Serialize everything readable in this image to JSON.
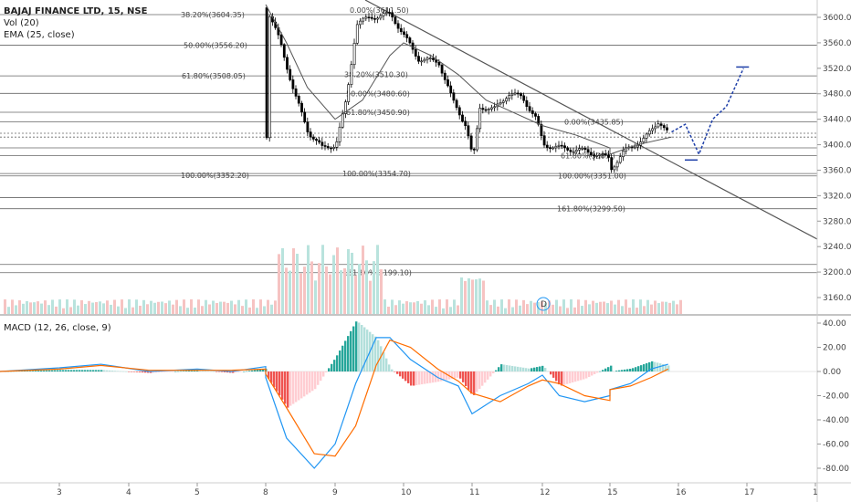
{
  "legend": {
    "symbol": "BAJAJ FINANCE LTD, 15, NSE",
    "vol": "Vol (20)",
    "ema": "EMA (25, close)",
    "macd": "MACD (12, 26, close, 9)"
  },
  "colors": {
    "up": "#26a69a",
    "down": "#ef5350",
    "candle": "#000000",
    "ema": "#555555",
    "trend": "#555555",
    "fib": "#666666",
    "macd_line": "#2196f3",
    "signal_line": "#ff6d00",
    "projection": "#1e3fa8"
  },
  "chart_data": [
    {
      "type": "candlestick",
      "price_axis": {
        "ticks": [
          "3600.00",
          "3560.00",
          "3520.00",
          "3480.00",
          "3440.00",
          "3400.00",
          "3360.00",
          "3320.00",
          "3280.00",
          "3240.00",
          "3200.00",
          "3160.00"
        ],
        "ylim": [
          3138,
          3620
        ]
      },
      "time_axis": {
        "ticks": [
          "3",
          "4",
          "5",
          "8",
          "9",
          "10",
          "11",
          "12",
          "15",
          "16",
          "17",
          "1"
        ]
      },
      "fib_labels": [
        {
          "text": "38.20%(3604.35)",
          "value": 3604.35
        },
        {
          "text": "50.00%(3556.20)",
          "value": 3556.2
        },
        {
          "text": "61.80%(3508.05)",
          "value": 3508.05
        },
        {
          "text": "100.00%(3352.20)",
          "value": 3352.2
        },
        {
          "text": "0.00%(3611.50)",
          "value": 3611.5
        },
        {
          "text": "38.20%(3510.30)",
          "value": 3510.3
        },
        {
          "text": "50.00%(3480.60)",
          "value": 3480.6
        },
        {
          "text": "61.80%(3450.90)",
          "value": 3450.9
        },
        {
          "text": "100.00%(3354.70)",
          "value": 3354.7
        },
        {
          "text": "161.80%(3199.10)",
          "value": 3199.1
        },
        {
          "text": "0.00%(3435.85)",
          "value": 3435.85
        },
        {
          "text": "61.80%(3383.)",
          "value": 3383
        },
        {
          "text": "100.00%(3351.00)",
          "value": 3351
        },
        {
          "text": "161.80%(3299.50)",
          "value": 3299.5
        }
      ],
      "horizontal_levels": [
        3604.35,
        3556.2,
        3508.05,
        3480.6,
        3450.9,
        3435.85,
        3418,
        3412,
        3395,
        3383,
        3354.7,
        3351,
        3317,
        3299.5,
        3212,
        3199.1
      ],
      "trendline": {
        "from": {
          "time": "10",
          "price": 3620
        },
        "to": {
          "time": "1",
          "price": 3250
        }
      },
      "ema_25": [
        {
          "t": 8.0,
          "p": 3620
        },
        {
          "t": 8.3,
          "p": 3560
        },
        {
          "t": 8.6,
          "p": 3490
        },
        {
          "t": 9.0,
          "p": 3440
        },
        {
          "t": 9.4,
          "p": 3470
        },
        {
          "t": 9.8,
          "p": 3540
        },
        {
          "t": 10.0,
          "p": 3560
        },
        {
          "t": 10.4,
          "p": 3540
        },
        {
          "t": 10.8,
          "p": 3510
        },
        {
          "t": 11.2,
          "p": 3470
        },
        {
          "t": 11.6,
          "p": 3450
        },
        {
          "t": 12.0,
          "p": 3430
        },
        {
          "t": 12.4,
          "p": 3415
        },
        {
          "t": 12.8,
          "p": 3395
        },
        {
          "t": 15.0,
          "p": 3385
        },
        {
          "t": 15.4,
          "p": 3400
        },
        {
          "t": 15.9,
          "p": 3412
        }
      ],
      "price_path": [
        {
          "t": 8.0,
          "p": 3615
        },
        {
          "t": 8.2,
          "p": 3560
        },
        {
          "t": 8.4,
          "p": 3480
        },
        {
          "t": 8.6,
          "p": 3420
        },
        {
          "t": 8.8,
          "p": 3395
        },
        {
          "t": 9.0,
          "p": 3400
        },
        {
          "t": 9.15,
          "p": 3470
        },
        {
          "t": 9.3,
          "p": 3590
        },
        {
          "t": 9.5,
          "p": 3600
        },
        {
          "t": 9.8,
          "p": 3605
        },
        {
          "t": 10.0,
          "p": 3570
        },
        {
          "t": 10.2,
          "p": 3535
        },
        {
          "t": 10.5,
          "p": 3530
        },
        {
          "t": 10.7,
          "p": 3470
        },
        {
          "t": 10.9,
          "p": 3430
        },
        {
          "t": 11.0,
          "p": 3375
        },
        {
          "t": 11.1,
          "p": 3460
        },
        {
          "t": 11.3,
          "p": 3455
        },
        {
          "t": 11.5,
          "p": 3480
        },
        {
          "t": 11.7,
          "p": 3475
        },
        {
          "t": 11.9,
          "p": 3440
        },
        {
          "t": 12.0,
          "p": 3400
        },
        {
          "t": 12.2,
          "p": 3395
        },
        {
          "t": 12.5,
          "p": 3390
        },
        {
          "t": 12.8,
          "p": 3378
        },
        {
          "t": 15.0,
          "p": 3362
        },
        {
          "t": 15.2,
          "p": 3390
        },
        {
          "t": 15.5,
          "p": 3410
        },
        {
          "t": 15.7,
          "p": 3438
        },
        {
          "t": 15.85,
          "p": 3415
        }
      ],
      "projection": [
        {
          "t": 15.9,
          "p": 3420
        },
        {
          "t": 16.1,
          "p": 3432
        },
        {
          "t": 16.3,
          "p": 3385
        },
        {
          "t": 16.5,
          "p": 3440
        },
        {
          "t": 16.7,
          "p": 3460
        },
        {
          "t": 16.95,
          "p": 3520
        }
      ],
      "projection_marks": [
        {
          "t": 16.2,
          "price": 3376
        },
        {
          "t": 16.95,
          "price": 3522
        }
      ],
      "volume_label": "D"
    },
    {
      "type": "line",
      "title": "MACD (12, 26, close, 9)",
      "ylim": [
        -85,
        42
      ],
      "ticks": [
        "40.00",
        "20.00",
        "0.00",
        "-20.00",
        "-40.00",
        "-60.00",
        "-80.00"
      ],
      "series": [
        {
          "name": "MACD",
          "points": [
            {
              "t": 2.3,
              "v": 0
            },
            {
              "t": 3.0,
              "v": 3
            },
            {
              "t": 3.6,
              "v": 6
            },
            {
              "t": 4.3,
              "v": 0
            },
            {
              "t": 5.0,
              "v": 2
            },
            {
              "t": 5.6,
              "v": 0
            },
            {
              "t": 6.2,
              "v": 4
            },
            {
              "t": 8.0,
              "v": -5
            },
            {
              "t": 8.3,
              "v": -55
            },
            {
              "t": 8.7,
              "v": -80
            },
            {
              "t": 9.0,
              "v": -60
            },
            {
              "t": 9.3,
              "v": -10
            },
            {
              "t": 9.6,
              "v": 28
            },
            {
              "t": 9.8,
              "v": 28
            },
            {
              "t": 10.1,
              "v": 10
            },
            {
              "t": 10.5,
              "v": -5
            },
            {
              "t": 10.8,
              "v": -12
            },
            {
              "t": 11.0,
              "v": -35
            },
            {
              "t": 11.4,
              "v": -20
            },
            {
              "t": 11.8,
              "v": -10
            },
            {
              "t": 12.0,
              "v": -3
            },
            {
              "t": 12.2,
              "v": -20
            },
            {
              "t": 12.5,
              "v": -25
            },
            {
              "t": 12.8,
              "v": -20
            },
            {
              "t": 15.0,
              "v": -15
            },
            {
              "t": 15.3,
              "v": -10
            },
            {
              "t": 15.6,
              "v": 2
            },
            {
              "t": 15.85,
              "v": 6
            }
          ]
        },
        {
          "name": "Signal",
          "points": [
            {
              "t": 2.3,
              "v": 0
            },
            {
              "t": 3.0,
              "v": 2
            },
            {
              "t": 3.6,
              "v": 5
            },
            {
              "t": 4.3,
              "v": 1
            },
            {
              "t": 5.0,
              "v": 1
            },
            {
              "t": 5.6,
              "v": 1
            },
            {
              "t": 6.2,
              "v": 2
            },
            {
              "t": 8.0,
              "v": -2
            },
            {
              "t": 8.3,
              "v": -30
            },
            {
              "t": 8.7,
              "v": -68
            },
            {
              "t": 9.0,
              "v": -70
            },
            {
              "t": 9.3,
              "v": -45
            },
            {
              "t": 9.6,
              "v": 5
            },
            {
              "t": 9.8,
              "v": 26
            },
            {
              "t": 10.1,
              "v": 20
            },
            {
              "t": 10.5,
              "v": 2
            },
            {
              "t": 10.8,
              "v": -8
            },
            {
              "t": 11.0,
              "v": -18
            },
            {
              "t": 11.4,
              "v": -25
            },
            {
              "t": 11.8,
              "v": -12
            },
            {
              "t": 12.0,
              "v": -7
            },
            {
              "t": 12.2,
              "v": -10
            },
            {
              "t": 12.5,
              "v": -20
            },
            {
              "t": 12.8,
              "v": -24
            },
            {
              "t": 15.0,
              "v": -15
            },
            {
              "t": 15.3,
              "v": -12
            },
            {
              "t": 15.6,
              "v": -5
            },
            {
              "t": 15.85,
              "v": 2
            }
          ]
        }
      ]
    }
  ]
}
